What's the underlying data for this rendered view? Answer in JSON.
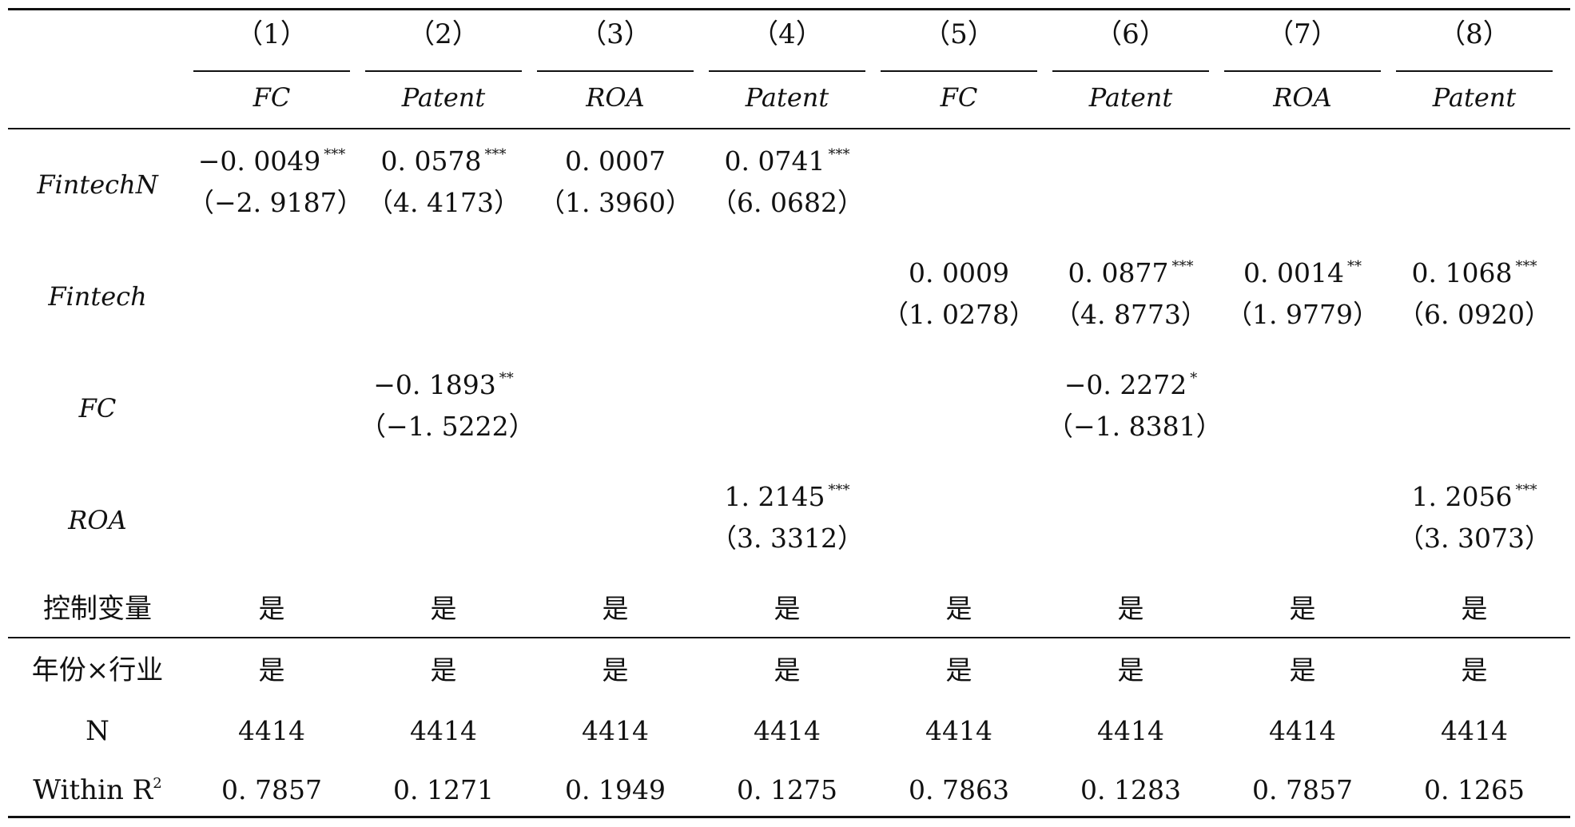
{
  "columns": {
    "numbers": [
      "（1）",
      "（2）",
      "（3）",
      "（4）",
      "（5）",
      "（6）",
      "（7）",
      "（8）"
    ],
    "dependent_vars": [
      "FC",
      "Patent",
      "ROA",
      "Patent",
      "FC",
      "Patent",
      "ROA",
      "Patent"
    ]
  },
  "rows": [
    {
      "label": "FintechN",
      "coef": [
        "−0. 0049",
        "0. 0578",
        "0. 0007",
        "0. 0741",
        "",
        "",
        "",
        ""
      ],
      "sig": [
        "***",
        "***",
        "",
        "***",
        "",
        "",
        "",
        ""
      ],
      "t": [
        "（−2. 9187）",
        "（4. 4173）",
        "（1. 3960）",
        "（6. 0682）",
        "",
        "",
        "",
        ""
      ]
    },
    {
      "label": "Fintech",
      "coef": [
        "",
        "",
        "",
        "",
        "0. 0009",
        "0. 0877",
        "0. 0014",
        "0. 1068"
      ],
      "sig": [
        "",
        "",
        "",
        "",
        "",
        "***",
        "**",
        "***"
      ],
      "t": [
        "",
        "",
        "",
        "",
        "（1. 0278）",
        "（4. 8773）",
        "（1. 9779）",
        "（6. 0920）"
      ]
    },
    {
      "label": "FC",
      "coef": [
        "",
        "−0. 1893",
        "",
        "",
        "",
        "−0. 2272",
        "",
        ""
      ],
      "sig": [
        "",
        "**",
        "",
        "",
        "",
        "*",
        "",
        ""
      ],
      "t": [
        "",
        "（−1. 5222）",
        "",
        "",
        "",
        "（−1. 8381）",
        "",
        ""
      ]
    },
    {
      "label": "ROA",
      "coef": [
        "",
        "",
        "",
        "1. 2145",
        "",
        "",
        "",
        "1. 2056"
      ],
      "sig": [
        "",
        "",
        "",
        "***",
        "",
        "",
        "",
        "***"
      ],
      "t": [
        "",
        "",
        "",
        "（3. 3312）",
        "",
        "",
        "",
        "（3. 3073）"
      ]
    }
  ],
  "footer": [
    {
      "label": "控制变量",
      "values": [
        "是",
        "是",
        "是",
        "是",
        "是",
        "是",
        "是",
        "是"
      ]
    },
    {
      "label": "年份×行业",
      "values": [
        "是",
        "是",
        "是",
        "是",
        "是",
        "是",
        "是",
        "是"
      ]
    },
    {
      "label": "N",
      "values": [
        "4414",
        "4414",
        "4414",
        "4414",
        "4414",
        "4414",
        "4414",
        "4414"
      ]
    },
    {
      "label": "Within R",
      "label_sup": "2",
      "values": [
        "0. 7857",
        "0. 1271",
        "0. 1949",
        "0. 1275",
        "0. 7863",
        "0. 1283",
        "0. 7857",
        "0. 1265"
      ]
    }
  ]
}
